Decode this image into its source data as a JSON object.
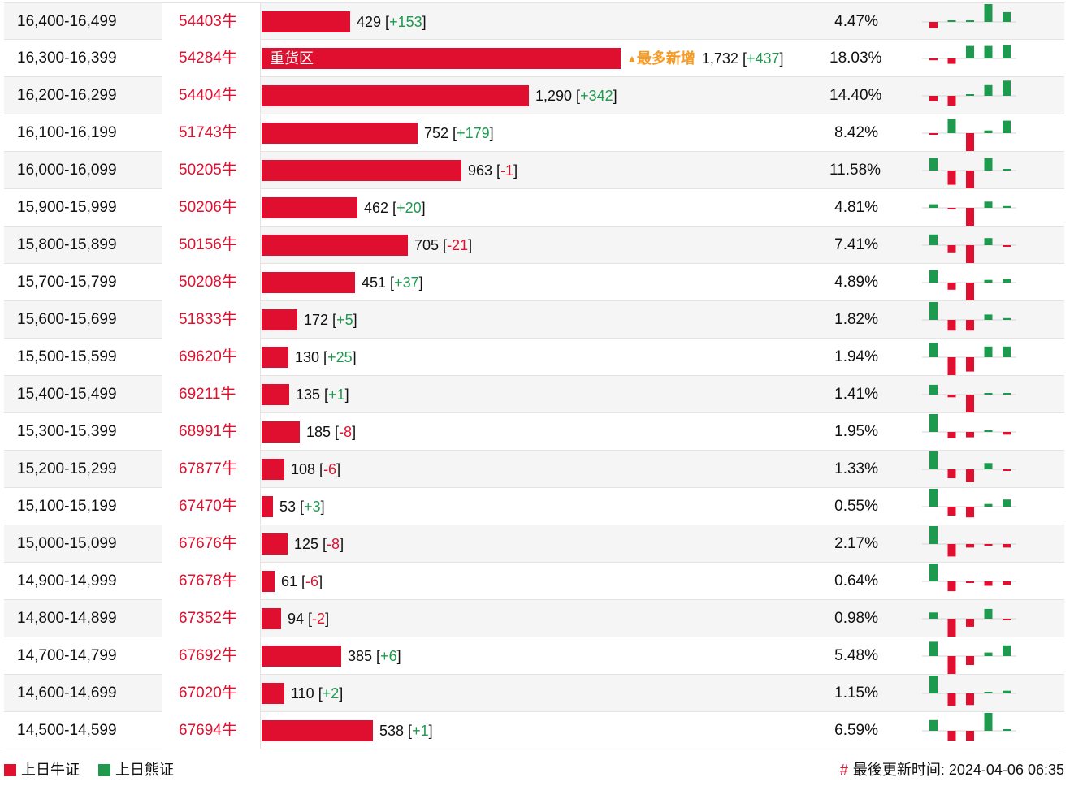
{
  "colors": {
    "bull": "#e00f2f",
    "bear": "#1e9a4f",
    "hot": "#f59a23"
  },
  "rows": [
    {
      "range": "16,400-16,499",
      "code": "54403牛",
      "count": 429,
      "count_label": "429",
      "delta": "+153",
      "pct": "4.47%",
      "spark": [
        -0.35,
        0,
        0.05,
        1,
        0.55
      ]
    },
    {
      "range": "16,300-16,399",
      "code": "54284牛",
      "count": 1732,
      "count_label": "1,732",
      "delta": "+437",
      "pct": "18.03%",
      "tag": "重货区",
      "hot": "最多新增",
      "spark": [
        -0.1,
        -0.3,
        0.7,
        0.7,
        0.75
      ]
    },
    {
      "range": "16,200-16,299",
      "code": "54404牛",
      "count": 1290,
      "count_label": "1,290",
      "delta": "+342",
      "pct": "14.40%",
      "spark": [
        -0.3,
        -0.55,
        0.05,
        0.6,
        0.85
      ]
    },
    {
      "range": "16,100-16,199",
      "code": "51743牛",
      "count": 752,
      "count_label": "752",
      "delta": "+179",
      "pct": "8.42%",
      "spark": [
        -0.05,
        0.8,
        -1,
        0.15,
        0.7
      ]
    },
    {
      "range": "16,000-16,099",
      "code": "50205牛",
      "count": 963,
      "count_label": "963",
      "delta": "-1",
      "pct": "11.58%",
      "spark": [
        0.7,
        -0.8,
        -1,
        0.7,
        0.05
      ]
    },
    {
      "range": "15,900-15,999",
      "code": "50206牛",
      "count": 462,
      "count_label": "462",
      "delta": "+20",
      "pct": "4.81%",
      "spark": [
        0.2,
        -0.05,
        -1,
        0.35,
        0.1
      ]
    },
    {
      "range": "15,800-15,899",
      "code": "50156牛",
      "count": 705,
      "count_label": "705",
      "delta": "-21",
      "pct": "7.41%",
      "spark": [
        0.6,
        -0.4,
        -1,
        0.4,
        -0.05
      ]
    },
    {
      "range": "15,700-15,799",
      "code": "50208牛",
      "count": 451,
      "count_label": "451",
      "delta": "+37",
      "pct": "4.89%",
      "spark": [
        0.7,
        -0.4,
        -1,
        0.15,
        0.2
      ]
    },
    {
      "range": "15,600-15,699",
      "code": "51833牛",
      "count": 172,
      "count_label": "172",
      "delta": "+5",
      "pct": "1.82%",
      "spark": [
        1,
        -0.6,
        -0.6,
        0.3,
        0.1
      ]
    },
    {
      "range": "15,500-15,599",
      "code": "69620牛",
      "count": 130,
      "count_label": "130",
      "delta": "+25",
      "pct": "1.94%",
      "spark": [
        0.8,
        -1,
        -0.8,
        0.6,
        0.6
      ]
    },
    {
      "range": "15,400-15,499",
      "code": "69211牛",
      "count": 135,
      "count_label": "135",
      "delta": "+1",
      "pct": "1.41%",
      "spark": [
        0.55,
        -0.15,
        -1,
        0.05,
        0.05
      ]
    },
    {
      "range": "15,300-15,399",
      "code": "68991牛",
      "count": 185,
      "count_label": "185",
      "delta": "-8",
      "pct": "1.95%",
      "spark": [
        1,
        -0.35,
        -0.3,
        0.05,
        -0.15
      ]
    },
    {
      "range": "15,200-15,299",
      "code": "67877牛",
      "count": 108,
      "count_label": "108",
      "delta": "-6",
      "pct": "1.33%",
      "spark": [
        1,
        -0.5,
        -0.7,
        0.35,
        -0.05
      ]
    },
    {
      "range": "15,100-15,199",
      "code": "67470牛",
      "count": 53,
      "count_label": "53",
      "delta": "+3",
      "pct": "0.55%",
      "spark": [
        1,
        -0.5,
        -0.6,
        0.15,
        0.4
      ]
    },
    {
      "range": "15,000-15,099",
      "code": "67676牛",
      "count": 125,
      "count_label": "125",
      "delta": "-8",
      "pct": "2.17%",
      "spark": [
        1,
        -0.7,
        -0.2,
        -0.05,
        -0.2
      ]
    },
    {
      "range": "14,900-14,999",
      "code": "67678牛",
      "count": 61,
      "count_label": "61",
      "delta": "-6",
      "pct": "0.64%",
      "spark": [
        1,
        -0.55,
        -0.05,
        -0.25,
        -0.2
      ]
    },
    {
      "range": "14,800-14,899",
      "code": "67352牛",
      "count": 94,
      "count_label": "94",
      "delta": "-2",
      "pct": "0.98%",
      "spark": [
        0.35,
        -1,
        -0.45,
        0.55,
        -0.05
      ]
    },
    {
      "range": "14,700-14,799",
      "code": "67692牛",
      "count": 385,
      "count_label": "385",
      "delta": "+6",
      "pct": "5.48%",
      "spark": [
        0.8,
        -1,
        -0.5,
        0.2,
        0.6
      ]
    },
    {
      "range": "14,600-14,699",
      "code": "67020牛",
      "count": 110,
      "count_label": "110",
      "delta": "+2",
      "pct": "1.15%",
      "spark": [
        1,
        -0.7,
        -0.65,
        0.05,
        0.15
      ]
    },
    {
      "range": "14,500-14,599",
      "code": "67694牛",
      "count": 538,
      "count_label": "538",
      "delta": "+1",
      "pct": "6.59%",
      "spark": [
        0.6,
        -0.55,
        -0.55,
        1,
        0.05
      ]
    }
  ],
  "legend": {
    "bull_label": "上日牛证",
    "bear_label": "上日熊证"
  },
  "footer": {
    "hash": "#",
    "updated": "最後更新时间: 2024-04-06 06:35"
  }
}
